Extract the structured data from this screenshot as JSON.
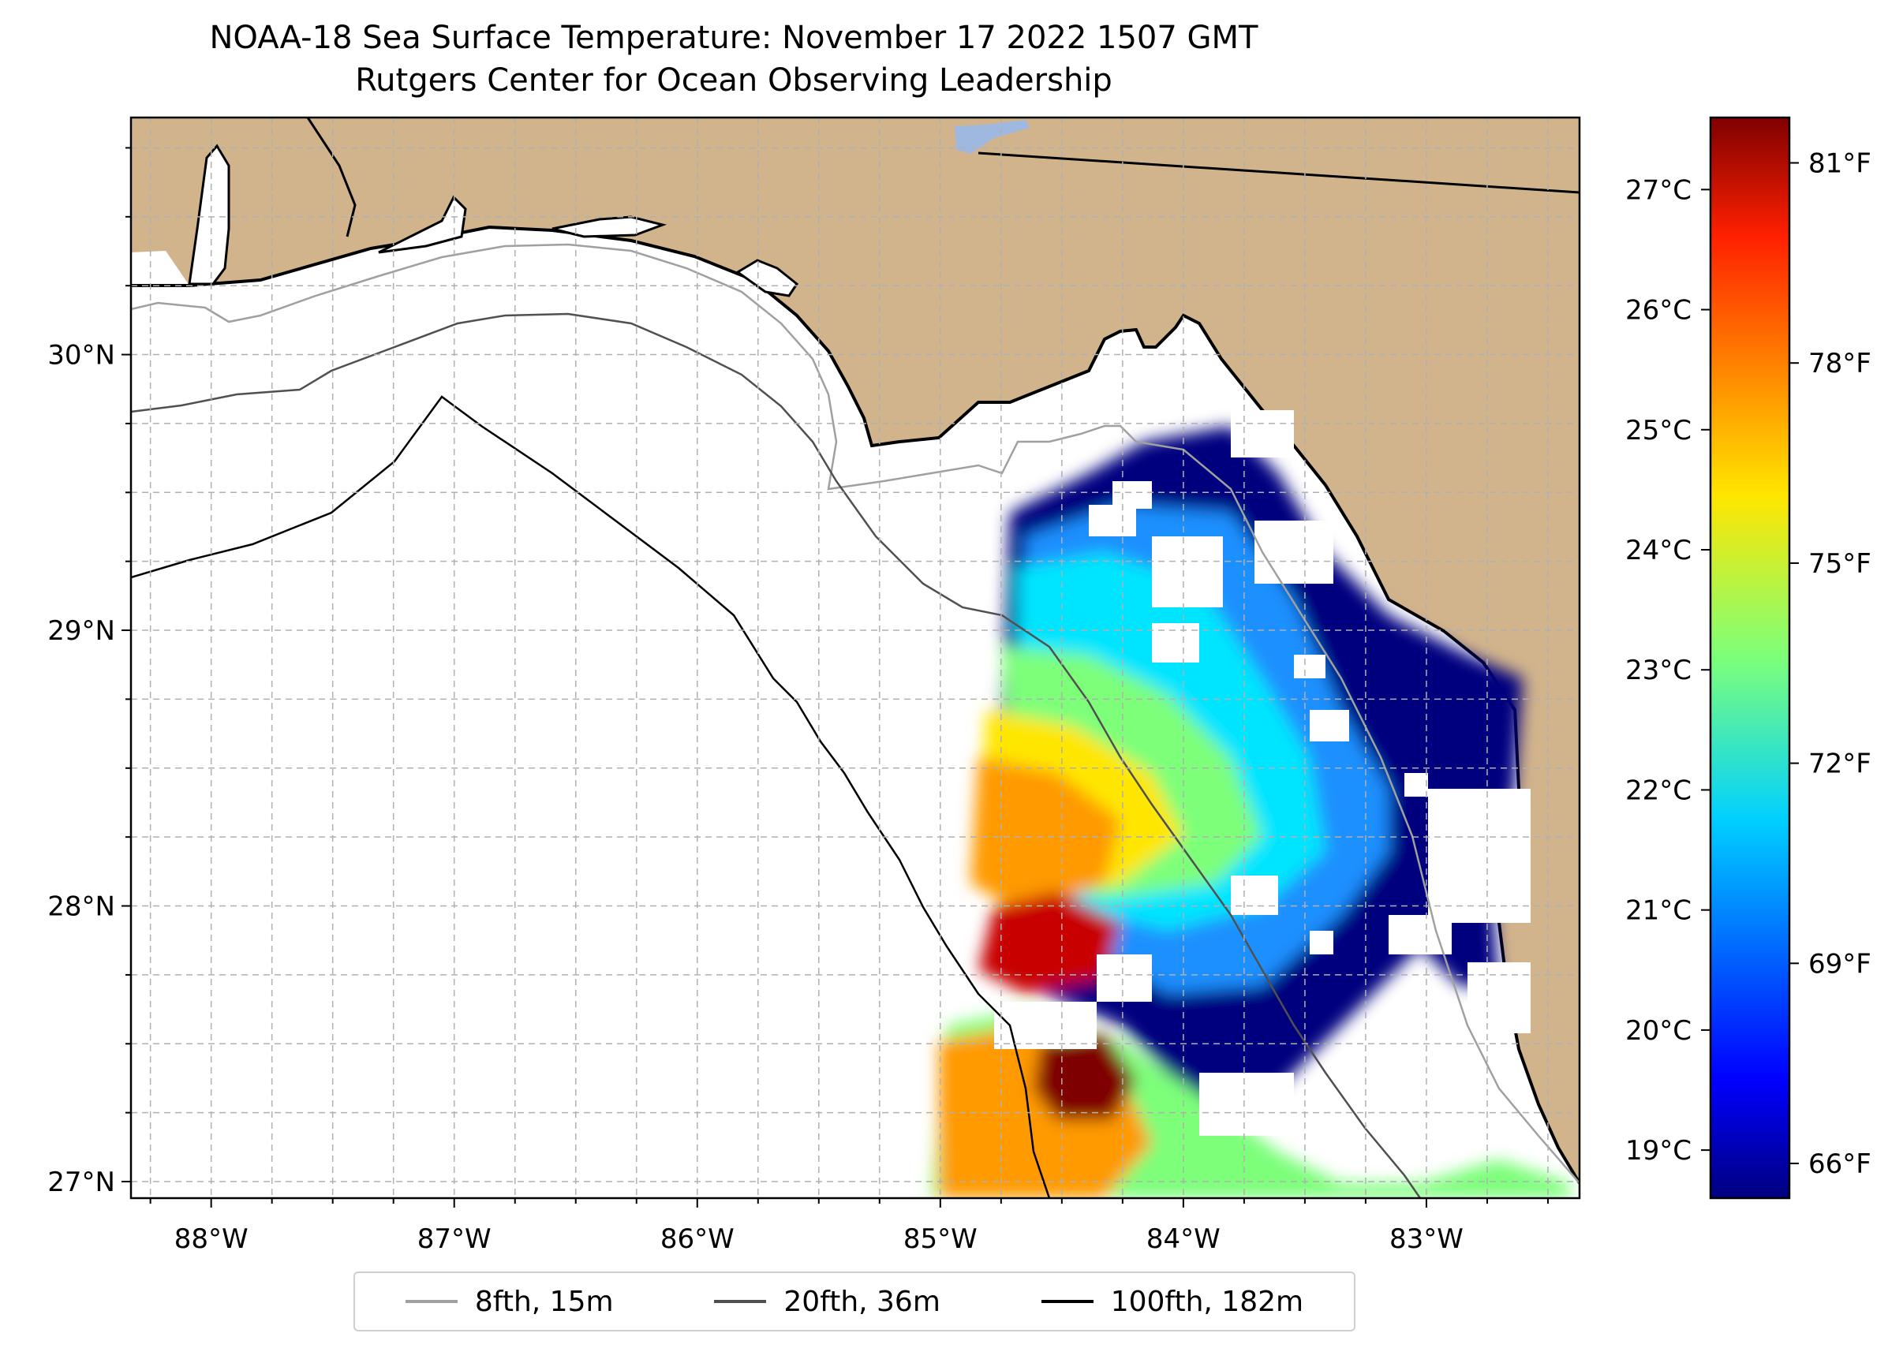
{
  "title_line1": "NOAA-18 Sea Surface Temperature: November 17 2022 1507 GMT",
  "title_line2": "Rutgers Center for Ocean Observing Leadership",
  "map": {
    "lon_range": [
      -88.33,
      -82.37
    ],
    "lat_range": [
      26.94,
      30.86
    ],
    "lon_ticks": [
      {
        "value": -88,
        "label": "88°W"
      },
      {
        "value": -87,
        "label": "87°W"
      },
      {
        "value": -86,
        "label": "86°W"
      },
      {
        "value": -85,
        "label": "85°W"
      },
      {
        "value": -84,
        "label": "84°W"
      },
      {
        "value": -83,
        "label": "83°W"
      }
    ],
    "lat_ticks": [
      {
        "value": 27,
        "label": "27°N"
      },
      {
        "value": 28,
        "label": "28°N"
      },
      {
        "value": 29,
        "label": "29°N"
      },
      {
        "value": 30,
        "label": "30°N"
      }
    ],
    "colors": {
      "land": "#d2b48c",
      "ocean": "#ffffff",
      "lake": "#9fb8e0",
      "contour_15m": "#a0a0a0",
      "contour_36m": "#505050",
      "contour_182m": "#000000"
    }
  },
  "colorbar": {
    "colormap": "jet",
    "celsius_range": [
      18.6,
      27.6
    ],
    "celsius_ticks": [
      {
        "value": 19,
        "label": "19°C"
      },
      {
        "value": 20,
        "label": "20°C"
      },
      {
        "value": 21,
        "label": "21°C"
      },
      {
        "value": 22,
        "label": "22°C"
      },
      {
        "value": 23,
        "label": "23°C"
      },
      {
        "value": 24,
        "label": "24°C"
      },
      {
        "value": 25,
        "label": "25°C"
      },
      {
        "value": 26,
        "label": "26°C"
      },
      {
        "value": 27,
        "label": "27°C"
      }
    ],
    "fahrenheit_ticks": [
      {
        "value": 66,
        "label": "66°F"
      },
      {
        "value": 69,
        "label": "69°F"
      },
      {
        "value": 72,
        "label": "72°F"
      },
      {
        "value": 75,
        "label": "75°F"
      },
      {
        "value": 78,
        "label": "78°F"
      },
      {
        "value": 81,
        "label": "81°F"
      }
    ]
  },
  "legend": [
    {
      "label": "8fth, 15m",
      "color": "#a0a0a0"
    },
    {
      "label": "20fth, 36m",
      "color": "#505050"
    },
    {
      "label": "100fth, 182m",
      "color": "#000000"
    }
  ]
}
